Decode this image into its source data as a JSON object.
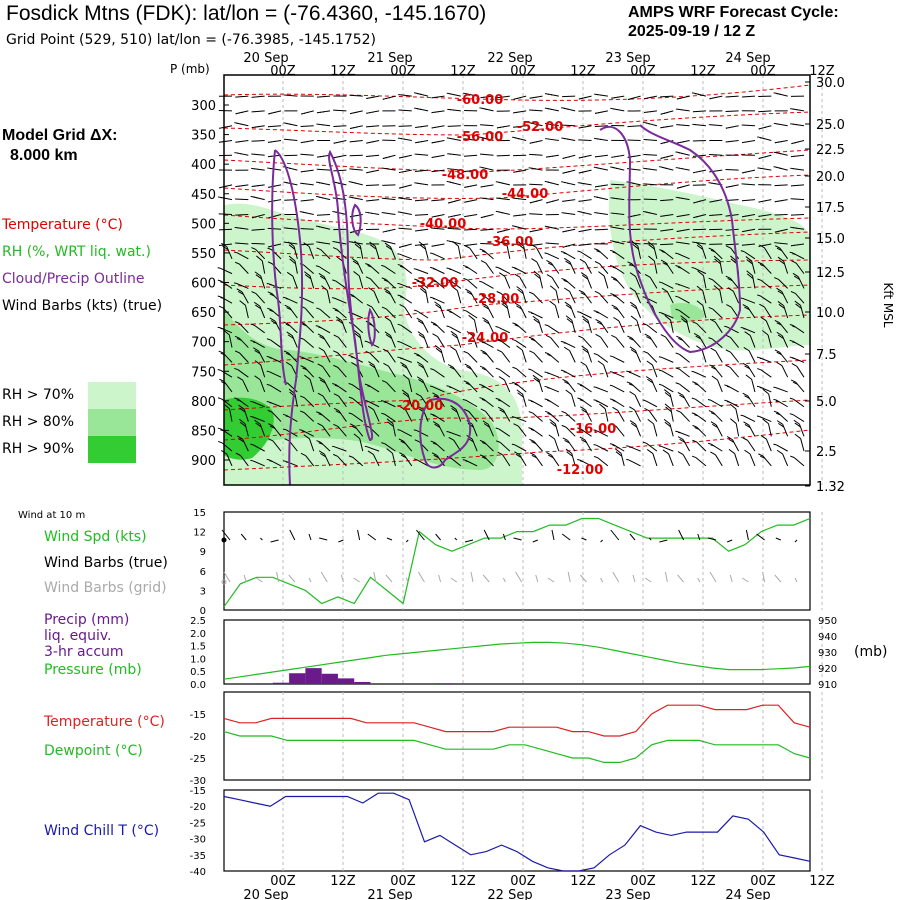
{
  "header": {
    "title": "Fosdick Mtns (FDK):  lat/lon = (-76.4360, -145.1670)",
    "subtitle": "Grid Point (529, 510) lat/lon = (-76.3985, -145.1752)",
    "cycle_line1": "AMPS WRF Forecast Cycle:",
    "cycle_line2": "2025-09-19 / 12  Z"
  },
  "upper_legend": {
    "grid_line1": "Model Grid ΔX:",
    "grid_line2": "8.000 km",
    "temperature": "Temperature (°C)",
    "rh": "RH (%, WRT liq. wat.)",
    "cloud": "Cloud/Precip Outline",
    "wind": "Wind Barbs (kts) (true)",
    "rh70": "RH > 70%",
    "rh80": "RH > 80%",
    "rh90": "RH > 90%",
    "colors": {
      "rh70": "#ccf5cc",
      "rh80": "#99e699",
      "rh90": "#33cc33",
      "temp": "#e00000",
      "cloud": "#7a2a9a"
    }
  },
  "lower_legend": {
    "wind10": "Wind at 10 m",
    "wind_spd": "Wind Spd (kts)",
    "wind_barbs_true": "Wind Barbs (true)",
    "wind_barbs_grid": "Wind Barbs (grid)",
    "precip_line1": "Precip (mm)",
    "precip_line2": "liq. equiv.",
    "precip_line3": "3-hr accum",
    "pressure": "Pressure (mb)",
    "pressure_unit": "(mb)",
    "temperature": "Temperature (°C)",
    "dewpoint": "Dewpoint (°C)",
    "windchill": "Wind Chill T (°C)"
  },
  "chart_data": [
    {
      "type": "line",
      "panel": "cross-section",
      "ylabel_left": "P (mb)",
      "ylabel_right": "Kft MSL",
      "pressure_ticks": [
        300,
        350,
        400,
        450,
        500,
        550,
        600,
        650,
        700,
        750,
        800,
        850,
        900
      ],
      "height_ticks": [
        "30.0",
        "25.0",
        "22.5",
        "20.0",
        "17.5",
        "15.0",
        "12.5",
        "10.0",
        "7.5",
        "5.0",
        "2.5",
        "1.32"
      ],
      "time_ticks": [
        "00Z",
        "12Z",
        "00Z",
        "12Z",
        "00Z",
        "12Z",
        "00Z",
        "12Z",
        "00Z",
        "12Z"
      ],
      "date_labels": [
        "20 Sep",
        "21 Sep",
        "22 Sep",
        "23 Sep",
        "24 Sep"
      ],
      "temperature_contour_labels": [
        "-60.00",
        "-56.00",
        "-52.00",
        "-48.00",
        "-44.00",
        "-40.00",
        "-36.00",
        "-32.00",
        "-28.00",
        "-24.00",
        "-20.00",
        "-16.00",
        "-12.00"
      ]
    },
    {
      "type": "line",
      "panel": "wind-10m",
      "ylim": [
        0,
        15
      ],
      "yticks": [
        0,
        3,
        6,
        9,
        12,
        15
      ],
      "series": [
        {
          "name": "Wind Spd (kts)",
          "color": "#22bb22",
          "values": [
            0.5,
            4,
            5,
            5,
            4,
            3,
            1,
            2,
            1,
            5,
            3,
            1,
            12,
            10,
            9,
            10,
            11,
            11,
            12,
            12,
            13,
            13,
            14,
            14,
            13,
            12,
            11,
            11,
            11,
            11,
            11,
            9,
            10,
            12,
            13,
            13,
            14
          ]
        }
      ]
    },
    {
      "type": "bar",
      "panel": "precip-pressure",
      "ylim": [
        0,
        2.5
      ],
      "yticks": [
        "2.5",
        "2.0",
        "1.5",
        "1.0",
        "0.5",
        "0.0"
      ],
      "pressure_ticks": [
        "950",
        "940",
        "930",
        "920",
        "910"
      ],
      "series": [
        {
          "name": "Precip (mm)",
          "color": "#6a1a8a",
          "values": [
            0,
            0,
            0.03,
            0.05,
            0.42,
            0.62,
            0.4,
            0.22,
            0.08,
            0,
            0,
            0,
            0,
            0.03,
            0,
            0,
            0,
            0,
            0,
            0,
            0,
            0,
            0,
            0,
            0,
            0,
            0,
            0,
            0,
            0,
            0,
            0,
            0,
            0,
            0,
            0
          ]
        },
        {
          "name": "Pressure (mb)",
          "color": "#22bb22",
          "values": [
            913,
            914.5,
            916,
            917.5,
            919,
            920.5,
            922,
            923.5,
            925,
            926.5,
            928,
            929,
            930,
            931,
            932,
            933,
            934,
            935,
            935.5,
            936,
            936,
            935.5,
            934.5,
            933,
            931,
            929,
            927,
            925,
            923,
            921.5,
            920,
            919,
            919,
            919,
            919.5,
            920,
            921
          ]
        }
      ]
    },
    {
      "type": "line",
      "panel": "temp-dewpoint",
      "ylim": [
        -30,
        -10
      ],
      "yticks": [
        "-15",
        "-20",
        "-25",
        "-30"
      ],
      "series": [
        {
          "name": "Temperature (°C)",
          "color": "#dd2222",
          "values": [
            -16,
            -17,
            -17,
            -16,
            -16,
            -16,
            -16,
            -16,
            -16,
            -17,
            -17,
            -17,
            -17,
            -18,
            -19,
            -19,
            -19,
            -19,
            -18,
            -18,
            -18,
            -18,
            -19,
            -19,
            -20,
            -20,
            -19,
            -15,
            -13,
            -13,
            -13,
            -14,
            -14,
            -14,
            -13,
            -13,
            -17,
            -18
          ]
        },
        {
          "name": "Dewpoint (°C)",
          "color": "#22bb22",
          "values": [
            -19,
            -20,
            -20,
            -20,
            -21,
            -21,
            -21,
            -21,
            -21,
            -21,
            -21,
            -21,
            -21,
            -22,
            -23,
            -23,
            -23,
            -23,
            -22,
            -22,
            -23,
            -24,
            -25,
            -25,
            -26,
            -26,
            -25,
            -22,
            -21,
            -21,
            -21,
            -22,
            -22,
            -22,
            -22,
            -22,
            -24,
            -25
          ]
        }
      ]
    },
    {
      "type": "line",
      "panel": "wind-chill",
      "ylim": [
        -40,
        -15
      ],
      "yticks": [
        "-15",
        "-20",
        "-25",
        "-30",
        "-35",
        "-40"
      ],
      "series": [
        {
          "name": "Wind Chill T (°C)",
          "color": "#1a1aaa",
          "values": [
            -17,
            -18,
            -19,
            -20,
            -17,
            -17,
            -17,
            -17,
            -17,
            -19,
            -16,
            -16,
            -18,
            -31,
            -29,
            -32,
            -35,
            -34,
            -32,
            -34,
            -37,
            -39,
            -40,
            -40,
            -39,
            -35,
            -32,
            -26,
            -28,
            -29,
            -28,
            -28,
            -28,
            -23,
            -24,
            -28,
            -35,
            -36,
            -37
          ]
        }
      ]
    }
  ]
}
